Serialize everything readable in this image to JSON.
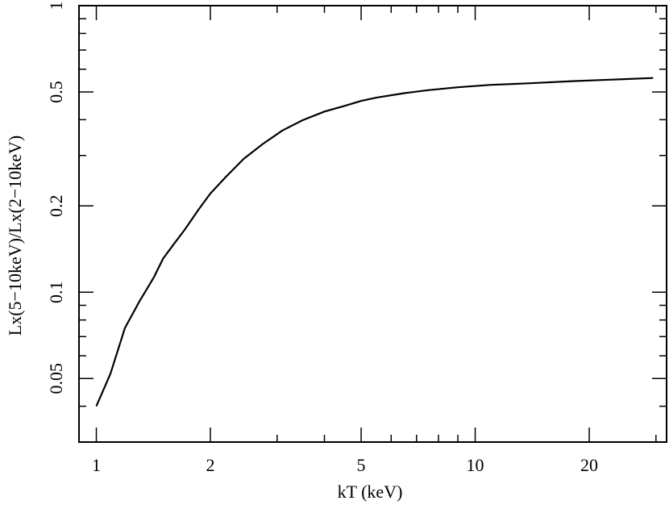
{
  "chart_data": {
    "type": "line",
    "title": "",
    "xlabel": "kT (keV)",
    "ylabel": "Lx(5−10keV)/Lx(2−10keV)",
    "xscale": "log",
    "yscale": "log",
    "xlim": [
      0.9,
      32
    ],
    "ylim": [
      0.03,
      1
    ],
    "grid": false,
    "x_tick_labels": [
      {
        "value": 1,
        "label": "1"
      },
      {
        "value": 2,
        "label": "2"
      },
      {
        "value": 5,
        "label": "5"
      },
      {
        "value": 10,
        "label": "10"
      },
      {
        "value": 20,
        "label": "20"
      }
    ],
    "y_tick_labels": [
      {
        "value": 1,
        "label": "1"
      },
      {
        "value": 0.5,
        "label": "0.5"
      },
      {
        "value": 0.2,
        "label": "0.2"
      },
      {
        "value": 0.1,
        "label": "0.1"
      },
      {
        "value": 0.05,
        "label": "0.05"
      }
    ],
    "series": [
      {
        "color": "#000000",
        "x": [
          1.0,
          1.09,
          1.19,
          1.3,
          1.42,
          1.5,
          1.6,
          1.71,
          1.86,
          2.0,
          2.2,
          2.45,
          2.75,
          3.1,
          3.5,
          4.0,
          4.5,
          5.0,
          5.5,
          6.5,
          7.5,
          9.0,
          11.0,
          14.0,
          18.0,
          23.0,
          29.5
        ],
        "y": [
          0.04,
          0.052,
          0.075,
          0.093,
          0.113,
          0.131,
          0.147,
          0.165,
          0.194,
          0.221,
          0.253,
          0.292,
          0.329,
          0.367,
          0.398,
          0.427,
          0.446,
          0.465,
          0.478,
          0.495,
          0.507,
          0.519,
          0.529,
          0.536,
          0.545,
          0.552,
          0.559
        ]
      }
    ]
  }
}
